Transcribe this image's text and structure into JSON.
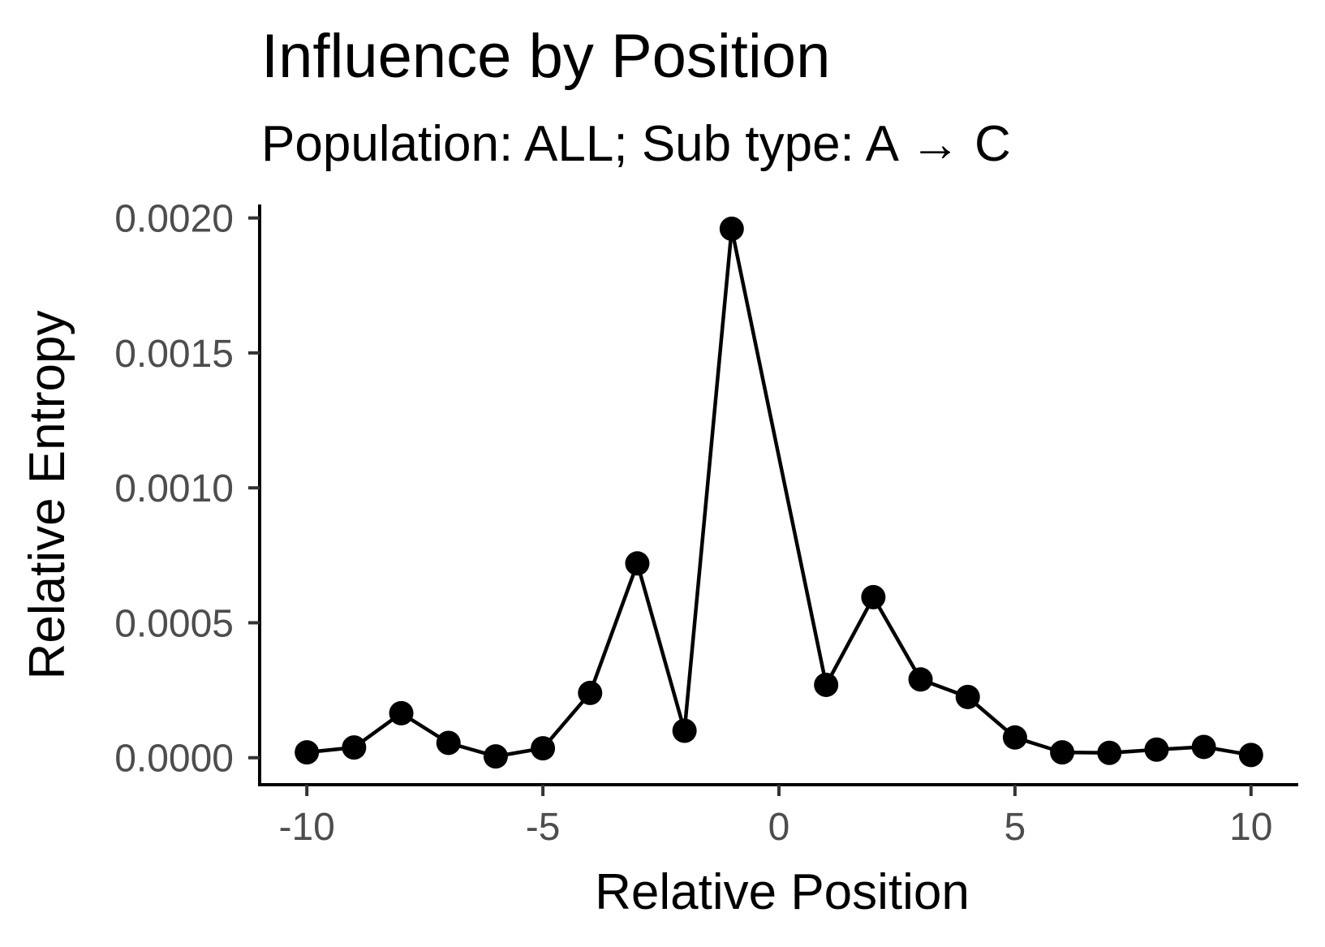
{
  "chart_data": {
    "type": "line",
    "title": "Influence by Position",
    "subtitle": "Population: ALL; Sub type: A → C",
    "xlabel": "Relative Position",
    "ylabel": "Relative Entropy",
    "x": [
      -10,
      -9,
      -8,
      -7,
      -6,
      -5,
      -4,
      -3,
      -2,
      -1,
      1,
      2,
      3,
      4,
      5,
      6,
      7,
      8,
      9,
      10
    ],
    "series": [
      {
        "values": [
          2e-05,
          3.8e-05,
          0.000165,
          5.5e-05,
          5e-06,
          3.5e-05,
          0.00024,
          0.00072,
          0.0001,
          0.00196,
          0.00027,
          0.000595,
          0.00029,
          0.000225,
          7.5e-05,
          2e-05,
          1.8e-05,
          3e-05,
          4e-05,
          1e-05
        ],
        "color": "#000000",
        "marker": "circle"
      }
    ],
    "xlim": [
      -11,
      11
    ],
    "ylim": [
      -0.0001,
      0.00205
    ],
    "x_ticks": [
      -10,
      -5,
      0,
      5,
      10
    ],
    "x_tick_labels": [
      "-10",
      "-5",
      "0",
      "5",
      "10"
    ],
    "y_ticks": [
      0,
      0.0005,
      0.001,
      0.0015,
      0.002
    ],
    "y_tick_labels": [
      "0.0000",
      "0.0005",
      "0.0010",
      "0.0015",
      "0.0020"
    ],
    "grid": false,
    "legend": "none"
  }
}
